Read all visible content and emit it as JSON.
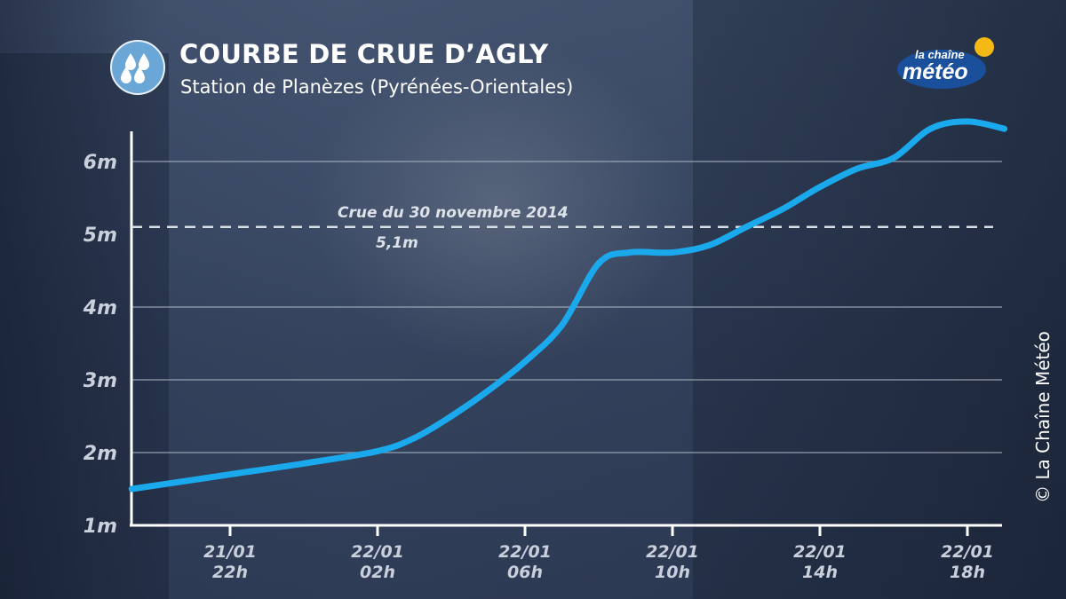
{
  "header": {
    "title": "COURBE DE CRUE D’AGLY",
    "subtitle": "Station de Planèzes (Pyrénées-Orientales)",
    "icon": "rain-drops-icon"
  },
  "logo": {
    "line1": "la chaîne",
    "line2": "météo",
    "icon": "sun-icon"
  },
  "copyright": "© La Chaîne Météo",
  "colors": {
    "curve": "#1aa9ec",
    "reference_line": "#d9dde4",
    "grid": "#aab3c2",
    "icon_bg": "#6aa6d6",
    "logo_blue": "#1a4f9c",
    "logo_sun": "#f5b915"
  },
  "chart_data": {
    "type": "line",
    "title": "COURBE DE CRUE D’AGLY",
    "subtitle": "Station de Planèzes (Pyrénées-Orientales)",
    "xlabel": "",
    "ylabel": "",
    "x_unit_hours_ref": "21/01 22h",
    "ylim": [
      1,
      6.5
    ],
    "yticks": [
      {
        "value": 1,
        "label": "1m"
      },
      {
        "value": 2,
        "label": "2m"
      },
      {
        "value": 3,
        "label": "3m"
      },
      {
        "value": 4,
        "label": "4m"
      },
      {
        "value": 5,
        "label": "5m"
      },
      {
        "value": 6,
        "label": "6m"
      }
    ],
    "xticks": [
      {
        "line1": "21/01",
        "line2": "22h"
      },
      {
        "line1": "22/01",
        "line2": "02h"
      },
      {
        "line1": "22/01",
        "line2": "06h"
      },
      {
        "line1": "22/01",
        "line2": "10h"
      },
      {
        "line1": "22/01",
        "line2": "14h"
      },
      {
        "line1": "22/01",
        "line2": "18h"
      }
    ],
    "series": [
      {
        "x": [
          "21/01 19h20",
          "21/01 22h",
          "22/01 00h",
          "22/01 02h",
          "22/01 03h",
          "22/01 04h",
          "22/01 05h",
          "22/01 06h",
          "22/01 07h",
          "22/01 08h",
          "22/01 08h50",
          "22/01 10h",
          "22/01 11h",
          "22/01 12h",
          "22/01 13h",
          "22/01 14h",
          "22/01 15h",
          "22/01 16h",
          "22/01 17h",
          "22/01 18h",
          "22/01 19h"
        ],
        "values": [
          1.5,
          1.7,
          1.85,
          2.02,
          2.2,
          2.5,
          2.85,
          3.25,
          3.75,
          4.6,
          4.75,
          4.75,
          4.85,
          5.1,
          5.35,
          5.65,
          5.9,
          6.05,
          6.45,
          6.55,
          6.45
        ]
      }
    ],
    "reference": {
      "value": 5.1,
      "label": "Crue du 30 novembre 2014",
      "value_label": "5,1m"
    },
    "grid": true
  }
}
